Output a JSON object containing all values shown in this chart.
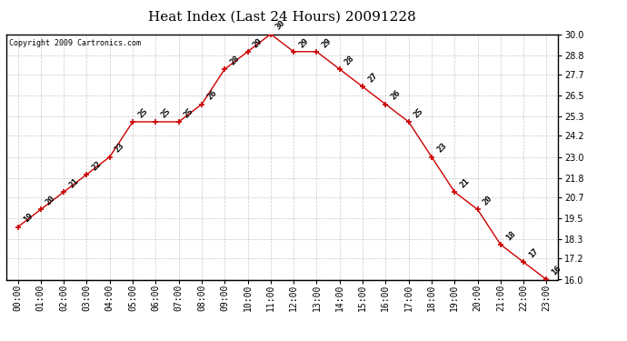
{
  "title": "Heat Index (Last 24 Hours) 20091228",
  "copyright": "Copyright 2009 Cartronics.com",
  "hours": [
    "00:00",
    "01:00",
    "02:00",
    "03:00",
    "04:00",
    "05:00",
    "06:00",
    "07:00",
    "08:00",
    "09:00",
    "10:00",
    "11:00",
    "12:00",
    "13:00",
    "14:00",
    "15:00",
    "16:00",
    "17:00",
    "18:00",
    "19:00",
    "20:00",
    "21:00",
    "22:00",
    "23:00"
  ],
  "values": [
    19,
    20,
    21,
    22,
    23,
    25,
    25,
    25,
    26,
    28,
    29,
    30,
    29,
    29,
    28,
    27,
    26,
    25,
    23,
    21,
    20,
    18,
    17,
    16
  ],
  "line_color": "#cc0000",
  "marker_color": "#cc0000",
  "background_color": "#ffffff",
  "grid_color": "#c8c8c8",
  "ylim": [
    16.0,
    30.0
  ],
  "yticks": [
    16.0,
    17.2,
    18.3,
    19.5,
    20.7,
    21.8,
    23.0,
    24.2,
    25.3,
    26.5,
    27.7,
    28.8,
    30.0
  ],
  "title_fontsize": 11,
  "label_fontsize": 7,
  "annotation_fontsize": 6.5,
  "copyright_fontsize": 6
}
